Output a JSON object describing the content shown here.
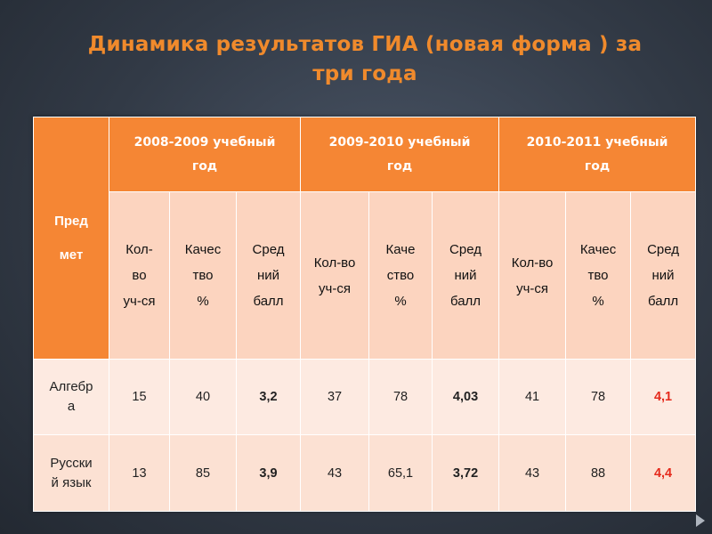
{
  "title": {
    "line1": "Динамика результатов ГИА (новая форма ) за",
    "line2": "три года"
  },
  "table": {
    "subject_header": "Пред\nмет",
    "years": [
      "2008-2009 учебный\nгод",
      "2009-2010 учебный\nгод",
      "2010-2011 учебный\nгод"
    ],
    "subheaders": [
      "Кол-\nво\nуч-ся",
      "Качес\nтво\n%",
      "Сред\nний\nбалл",
      "Кол-во\nуч-ся",
      "Каче\nство\n%",
      "Сред\nний\nбалл",
      "Кол-во\nуч-ся",
      "Качес\nтво\n%",
      "Сред\nний\nбалл"
    ],
    "rows": [
      {
        "subject": "Алгебр\nа",
        "values": [
          "15",
          "40",
          "3,2",
          "37",
          "78",
          "4,03",
          "41",
          "78",
          "4,1"
        ]
      },
      {
        "subject": "Русски\nй язык",
        "values": [
          "13",
          "85",
          "3,9",
          "43",
          "65,1",
          "3,72",
          "43",
          "88",
          "4,4"
        ]
      }
    ]
  },
  "colors": {
    "title": "#f08a2c",
    "header_bg": "#f58634",
    "subheader_bg": "#fcd4bf",
    "row_bg": "#fdeae1",
    "highlight_value": "#e52a1c"
  },
  "icons": {
    "next": "triangle-right-icon"
  }
}
